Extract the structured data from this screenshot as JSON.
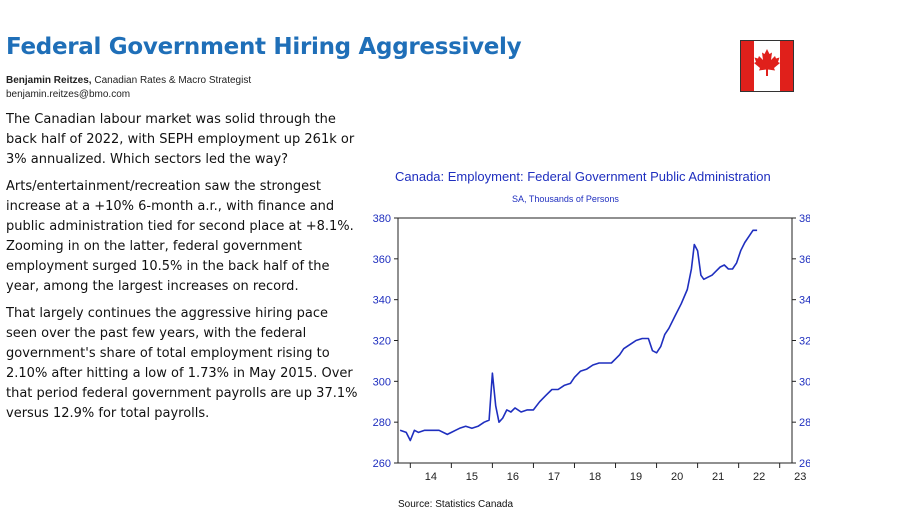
{
  "header": {
    "title": "Federal Government Hiring Aggressively",
    "author_name": "Benjamin Reitzes,",
    "author_role": " Canadian Rates & Macro Strategist",
    "author_email": "benjamin.reitzes@bmo.com"
  },
  "body": {
    "paragraphs": [
      "The Canadian labour market was solid through the back half of 2022, with SEPH employment up 261k or 3% annualized. Which sectors led the way?",
      "Arts/entertainment/recreation saw the strongest increase at a +10% 6-month a.r., with finance and public administration tied for second place at +8.1%. Zooming in on the latter, federal government employment surged 10.5% in the back half of the year, among the largest increases on record.",
      "That largely continues the aggressive hiring pace seen over the past few years, with the federal government's share of total employment rising to 2.10% after hitting a low of 1.73% in May 2015. Over that period federal government payrolls are up 37.1% versus 12.9% for total payrolls."
    ]
  },
  "flag": {
    "icon": "canada-flag-icon",
    "red": "#e0201b"
  },
  "chart": {
    "source": "Source:   Statistics Canada"
  },
  "chart_data": {
    "type": "line",
    "title": "Canada: Employment: Federal Government Public Administration",
    "subtitle": "SA, Thousands of Persons",
    "xlabel": "",
    "ylabel": "",
    "xlim": [
      2013.7,
      2023.3
    ],
    "ylim": [
      260,
      380
    ],
    "x_ticks": [
      14,
      15,
      16,
      17,
      18,
      19,
      20,
      21,
      22,
      23
    ],
    "y_ticks": [
      260,
      280,
      300,
      320,
      340,
      360,
      380
    ],
    "y_axis_both_sides": true,
    "grid": false,
    "line_color": "#1f2fbf",
    "series": [
      {
        "x": [
          2013.75,
          2013.9,
          2014.0,
          2014.1,
          2014.2,
          2014.35,
          2014.5,
          2014.7,
          2014.9,
          2015.0,
          2015.1,
          2015.2,
          2015.35,
          2015.5,
          2015.65,
          2015.8,
          2015.92,
          2016.0,
          2016.08,
          2016.16,
          2016.25,
          2016.35,
          2016.45,
          2016.55,
          2016.7,
          2016.85,
          2017.0,
          2017.15,
          2017.3,
          2017.45,
          2017.6,
          2017.75,
          2017.9,
          2018.0,
          2018.15,
          2018.3,
          2018.45,
          2018.6,
          2018.75,
          2018.9,
          2019.0,
          2019.1,
          2019.2,
          2019.35,
          2019.5,
          2019.65,
          2019.8,
          2019.9,
          2020.0,
          2020.1,
          2020.2,
          2020.3,
          2020.45,
          2020.6,
          2020.75,
          2020.85,
          2020.92,
          2021.0,
          2021.08,
          2021.15,
          2021.25,
          2021.35,
          2021.45,
          2021.55,
          2021.65,
          2021.75,
          2021.85,
          2021.95,
          2022.05,
          2022.15,
          2022.25,
          2022.35,
          2022.45
        ],
        "values": [
          276,
          275,
          271,
          276,
          275,
          276,
          276,
          276,
          274,
          275,
          276,
          277,
          278,
          277,
          278,
          280,
          281,
          304,
          288,
          280,
          282,
          286,
          285,
          287,
          285,
          286,
          286,
          290,
          293,
          296,
          296,
          298,
          299,
          302,
          305,
          306,
          308,
          309,
          309,
          309,
          311,
          313,
          316,
          318,
          320,
          321,
          321,
          315,
          314,
          317,
          323,
          326,
          332,
          338,
          345,
          355,
          367,
          364,
          352,
          350,
          351,
          352,
          354,
          356,
          357,
          355,
          355,
          358,
          364,
          368,
          371,
          374,
          374
        ]
      }
    ]
  }
}
